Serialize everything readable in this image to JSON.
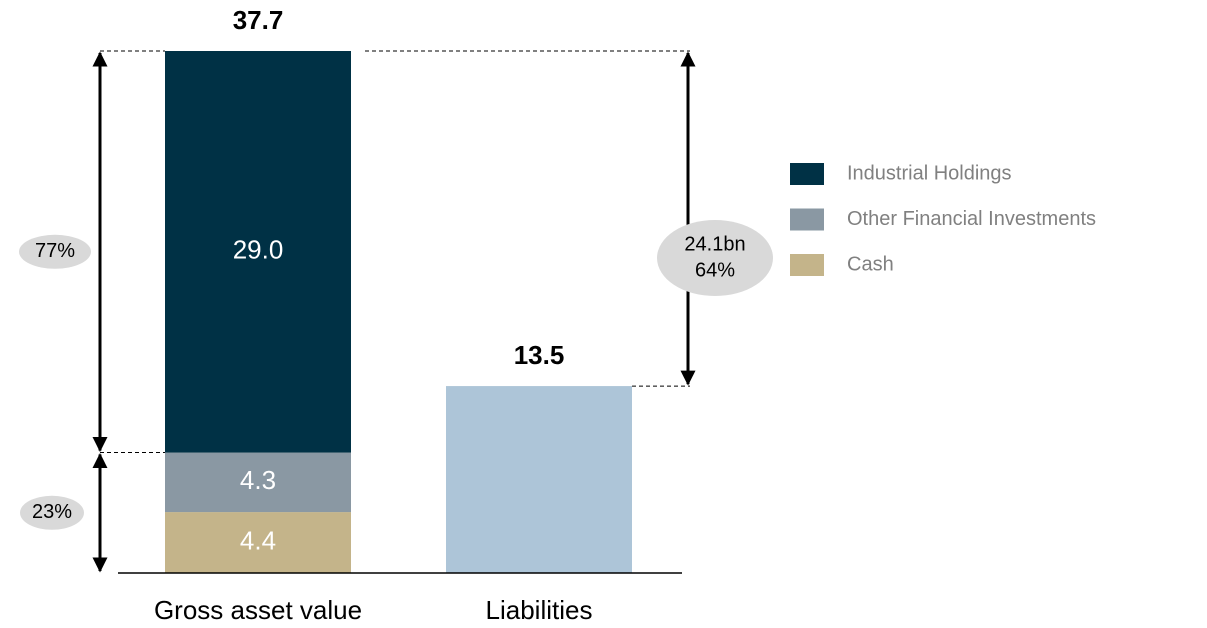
{
  "chart_data": {
    "type": "stacked_bar",
    "categories": [
      "Gross asset value",
      "Liabilities"
    ],
    "series": [
      {
        "name": "Industrial Holdings",
        "color": "#003145",
        "values": [
          29.0,
          null
        ],
        "value_labels": [
          "29.0",
          null
        ]
      },
      {
        "name": "Other Financial Investments",
        "color": "#8a98a3",
        "values": [
          4.3,
          null
        ]
      },
      {
        "name": "Cash",
        "color": "#c4b48a",
        "values": [
          4.4,
          null
        ]
      },
      {
        "color": "#adc5d8",
        "values": [
          null,
          13.5
        ]
      }
    ],
    "totals": [
      37.7,
      13.5
    ],
    "annotations": [
      "77%",
      "23%",
      "24.1bn",
      "64%"
    ],
    "ylim": [
      0,
      37.7
    ]
  }
}
